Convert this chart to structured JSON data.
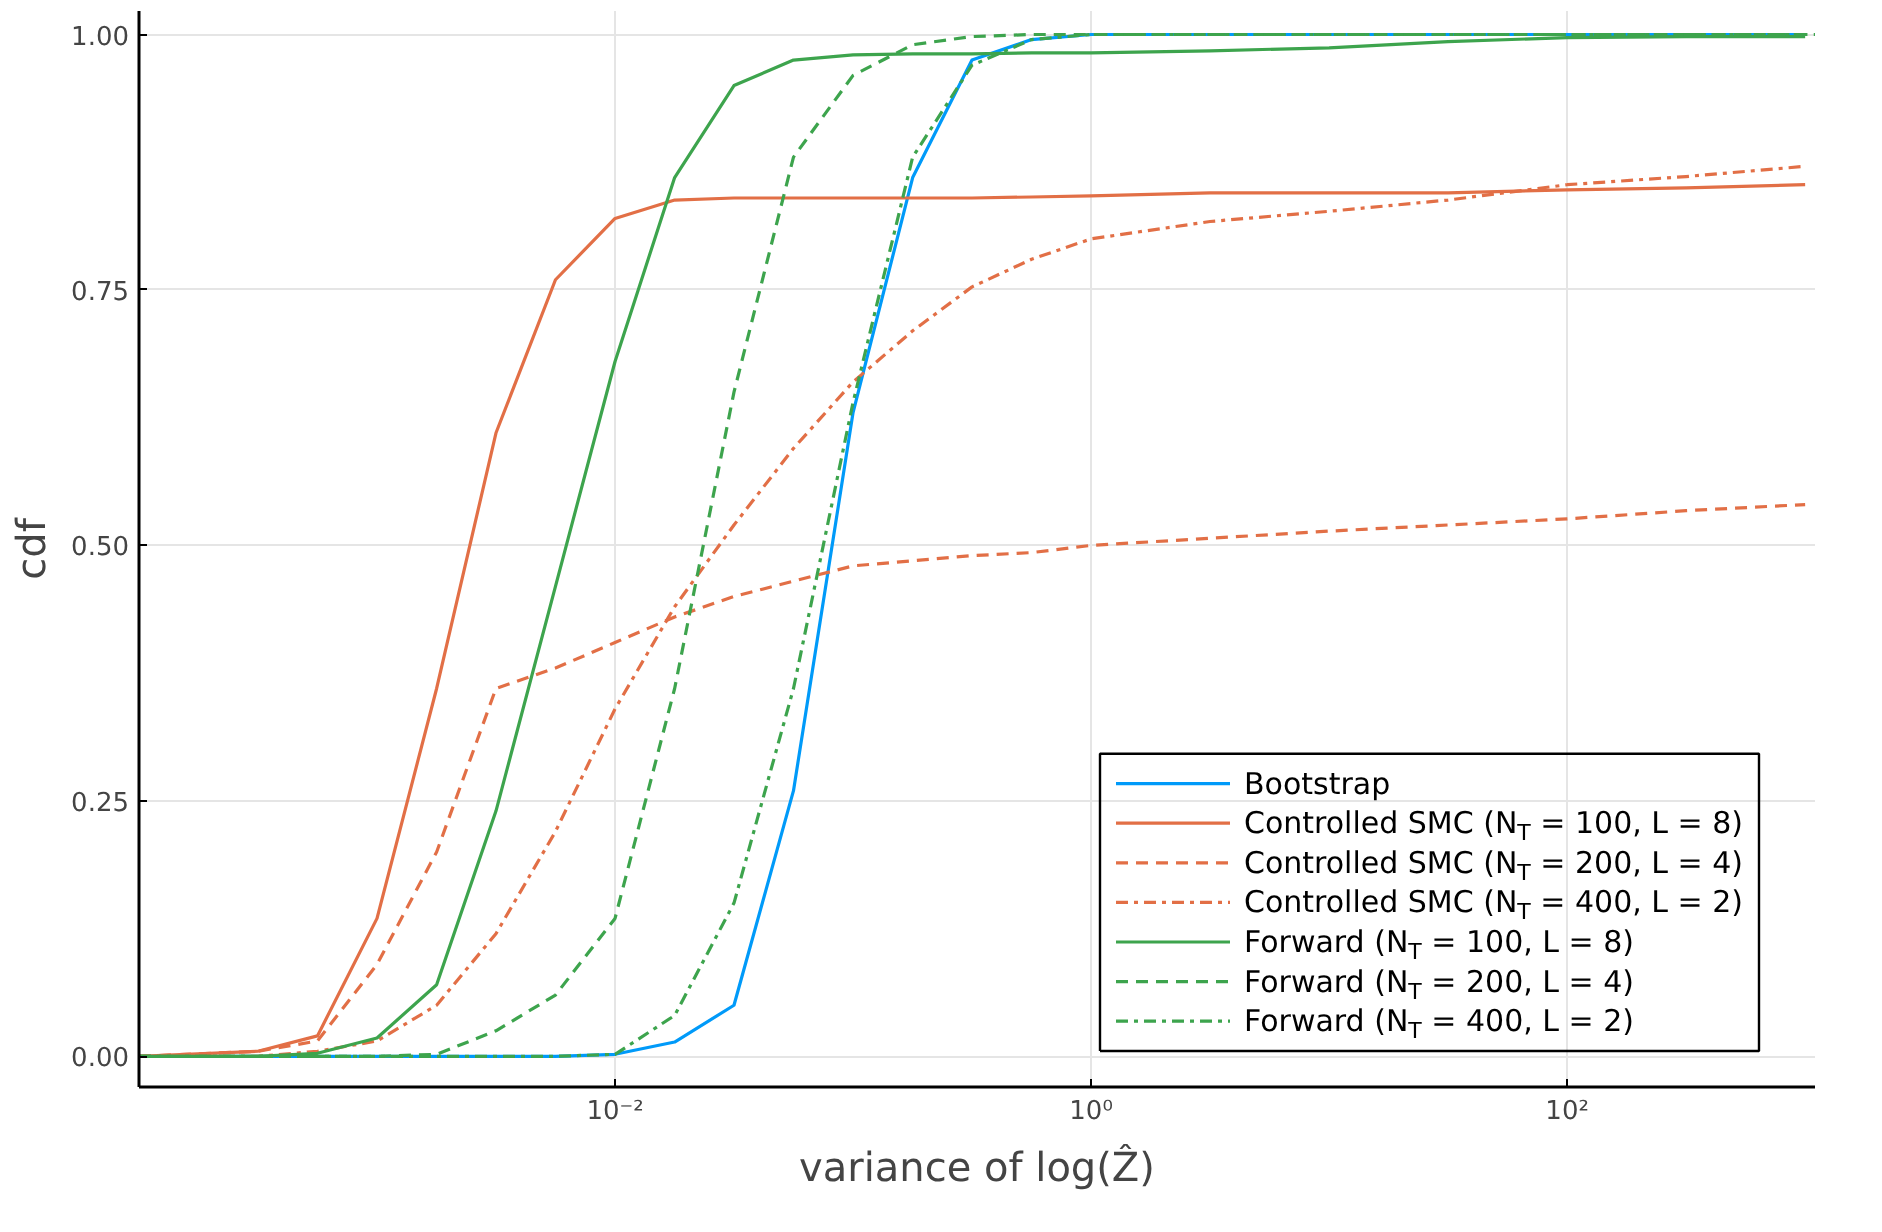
{
  "chart_data": {
    "type": "line",
    "xlabel": "variance of log(Ẑ)",
    "ylabel": "cdf",
    "log": "x",
    "grid": true,
    "legend": "bottom right",
    "x": [
      0.0001,
      0.000316,
      0.000562,
      0.001,
      0.00178,
      0.00316,
      0.00562,
      0.01,
      0.0178,
      0.0316,
      0.0562,
      0.1,
      0.178,
      0.316,
      0.562,
      1,
      3.16,
      10,
      31.6,
      100,
      316,
      1000
    ],
    "xlim": [
      0.0001,
      1100
    ],
    "ylim": [
      -0.03,
      1.023
    ],
    "xticks": [
      {
        "value": 0.01,
        "label": "10⁻²"
      },
      {
        "value": 1,
        "label": "10⁰"
      },
      {
        "value": 100,
        "label": "10²"
      }
    ],
    "yticks": [
      {
        "value": 0,
        "label": "0.00"
      },
      {
        "value": 0.25,
        "label": "0.25"
      },
      {
        "value": 0.5,
        "label": "0.50"
      },
      {
        "value": 0.75,
        "label": "0.75"
      },
      {
        "value": 1,
        "label": "1.00"
      }
    ],
    "series": [
      {
        "name": "Bootstrap",
        "color": "#009af9",
        "line_style": "solid",
        "values": [
          0,
          0,
          0,
          0,
          0,
          0,
          0,
          0.002,
          0.014,
          0.05,
          0.26,
          0.63,
          0.86,
          0.975,
          0.995,
          1.0,
          1.0,
          1.0,
          1.0,
          1.0,
          1.0,
          1.0
        ]
      },
      {
        "name": "Controlled SMC (N$_{T}$ = 100, L = 8)",
        "color": "#e26f46",
        "line_style": "solid",
        "values": [
          0,
          0.005,
          0.02,
          0.135,
          0.36,
          0.61,
          0.76,
          0.82,
          0.838,
          0.84,
          0.84,
          0.84,
          0.84,
          0.84,
          0.841,
          0.842,
          0.845,
          0.845,
          0.845,
          0.848,
          0.85,
          0.853
        ]
      },
      {
        "name": "Controlled SMC (N$_{T}$ = 200, L = 4)",
        "color": "#e26f46",
        "line_style": "dashed",
        "values": [
          0,
          0.005,
          0.015,
          0.09,
          0.2,
          0.36,
          0.38,
          0.405,
          0.43,
          0.45,
          0.465,
          0.48,
          0.485,
          0.49,
          0.493,
          0.5,
          0.507,
          0.514,
          0.52,
          0.526,
          0.534,
          0.54
        ]
      },
      {
        "name": "Controlled SMC (N$_{T}$ = 400, L = 2)",
        "color": "#e26f46",
        "line_style": "dashdot",
        "values": [
          0,
          0,
          0.005,
          0.015,
          0.05,
          0.12,
          0.22,
          0.34,
          0.44,
          0.52,
          0.595,
          0.66,
          0.71,
          0.753,
          0.78,
          0.8,
          0.817,
          0.827,
          0.838,
          0.853,
          0.861,
          0.871
        ]
      },
      {
        "name": "Forward (N$_{T}$ = 100, L = 8)",
        "color": "#3da44d",
        "line_style": "solid",
        "values": [
          0,
          0,
          0.003,
          0.018,
          0.07,
          0.24,
          0.46,
          0.68,
          0.86,
          0.95,
          0.975,
          0.98,
          0.981,
          0.981,
          0.982,
          0.982,
          0.984,
          0.987,
          0.993,
          0.997,
          0.998,
          0.998
        ]
      },
      {
        "name": "Forward (N$_{T}$ = 200, L = 4)",
        "color": "#3da44d",
        "line_style": "dashed",
        "x": [
          0.0001,
          0.000316,
          0.000562,
          0.001,
          0.00178,
          0.00316,
          0.00562,
          0.01,
          0.0178,
          0.0316,
          0.0562,
          0.1,
          0.178,
          0.316,
          0.562,
          1,
          3.16,
          10,
          31.6,
          100,
          316,
          1100
        ],
        "values": [
          0,
          0,
          0,
          0,
          0.002,
          0.025,
          0.06,
          0.135,
          0.36,
          0.65,
          0.88,
          0.96,
          0.99,
          0.998,
          1.0,
          1.0,
          1.0,
          1.0,
          1.0,
          1.0,
          1.0,
          1.0
        ]
      },
      {
        "name": "Forward (N$_{T}$ = 400, L = 2)",
        "color": "#3da44d",
        "line_style": "dashdot",
        "x": [
          0.0001,
          0.000316,
          0.000562,
          0.001,
          0.00178,
          0.00316,
          0.00562,
          0.01,
          0.0178,
          0.0316,
          0.0562,
          0.1,
          0.178,
          0.316,
          0.562,
          1,
          3.16,
          10,
          31.6,
          100,
          316,
          1050
        ],
        "values": [
          0,
          0,
          0,
          0,
          0,
          0,
          0,
          0.002,
          0.04,
          0.15,
          0.36,
          0.64,
          0.88,
          0.97,
          0.995,
          1.0,
          1.0,
          1.0,
          1.0,
          1.0,
          1.0,
          1.0
        ]
      }
    ]
  }
}
